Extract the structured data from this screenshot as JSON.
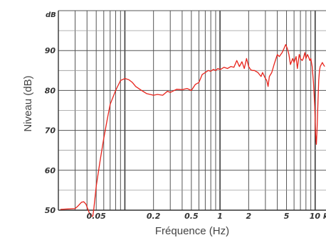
{
  "chart_data": {
    "type": "line",
    "title": "",
    "xlabel": "Fréquence (Hz)",
    "ylabel": "Niveau (dB)",
    "y_unit": "dB",
    "x_scale": "log",
    "xlim": [
      0.02,
      13
    ],
    "ylim": [
      50,
      100
    ],
    "grid": true,
    "x_ticks": [
      {
        "value": 0.05,
        "label": "0.05"
      },
      {
        "value": 0.2,
        "label": "0.2"
      },
      {
        "value": 0.5,
        "label": "0.5"
      },
      {
        "value": 1,
        "label": "1"
      },
      {
        "value": 2,
        "label": "2"
      },
      {
        "value": 5,
        "label": "5"
      },
      {
        "value": 10,
        "label": "10 k"
      }
    ],
    "y_ticks": [
      {
        "value": 50,
        "label": "50"
      },
      {
        "value": 60,
        "label": "60"
      },
      {
        "value": 70,
        "label": "70"
      },
      {
        "value": 80,
        "label": "80"
      },
      {
        "value": 90,
        "label": "90"
      }
    ],
    "series": [
      {
        "name": "",
        "color": "#e8241c",
        "x": [
          0.021,
          0.025,
          0.03,
          0.032,
          0.035,
          0.037,
          0.039,
          0.042,
          0.044,
          0.046,
          0.047,
          0.05,
          0.055,
          0.06,
          0.065,
          0.07,
          0.08,
          0.09,
          0.1,
          0.11,
          0.12,
          0.13,
          0.15,
          0.17,
          0.2,
          0.22,
          0.25,
          0.28,
          0.3,
          0.35,
          0.4,
          0.45,
          0.5,
          0.55,
          0.6,
          0.65,
          0.7,
          0.75,
          0.8,
          0.85,
          0.9,
          0.95,
          1.0,
          1.1,
          1.2,
          1.3,
          1.4,
          1.5,
          1.6,
          1.7,
          1.8,
          1.9,
          2.0,
          2.1,
          2.2,
          2.3,
          2.5,
          2.7,
          2.8,
          3.0,
          3.1,
          3.2,
          3.3,
          3.5,
          3.7,
          4.0,
          4.2,
          4.5,
          4.7,
          4.9,
          5.1,
          5.3,
          5.5,
          5.8,
          6.0,
          6.3,
          6.5,
          6.8,
          7.0,
          7.3,
          7.5,
          7.8,
          8.0,
          8.3,
          8.5,
          8.8,
          9.0,
          9.3,
          9.6,
          9.9,
          10.1,
          10.3,
          10.5,
          10.7,
          10.9,
          11.1,
          11.3,
          11.6,
          11.9,
          12.2,
          12.6
        ],
        "y": [
          50.2,
          50.3,
          50.4,
          51.0,
          52.0,
          52.1,
          51.5,
          49.5,
          48.5,
          48.5,
          50.0,
          56.0,
          62.5,
          68.0,
          72.5,
          76.5,
          80.0,
          82.5,
          83.0,
          82.7,
          82.0,
          81.0,
          80.0,
          79.2,
          78.8,
          79.0,
          78.8,
          79.8,
          79.5,
          80.3,
          80.2,
          80.5,
          80.0,
          81.5,
          82.0,
          84.0,
          84.5,
          85.0,
          84.8,
          85.3,
          85.0,
          85.5,
          85.2,
          85.8,
          85.5,
          86.0,
          85.8,
          87.5,
          86.0,
          87.2,
          85.5,
          88.0,
          86.0,
          85.2,
          85.0,
          85.0,
          84.5,
          83.5,
          84.5,
          83.0,
          82.5,
          81.0,
          83.5,
          84.5,
          86.5,
          89.0,
          88.5,
          89.5,
          90.5,
          91.5,
          90.5,
          89.0,
          86.5,
          88.0,
          87.0,
          88.5,
          85.5,
          89.0,
          88.0,
          87.5,
          88.0,
          89.5,
          88.0,
          89.0,
          88.5,
          87.5,
          88.0,
          86.0,
          82.0,
          76.0,
          69.0,
          66.5,
          71.0,
          77.0,
          82.5,
          85.0,
          86.0,
          86.5,
          87.0,
          86.5,
          86.0
        ]
      }
    ]
  }
}
